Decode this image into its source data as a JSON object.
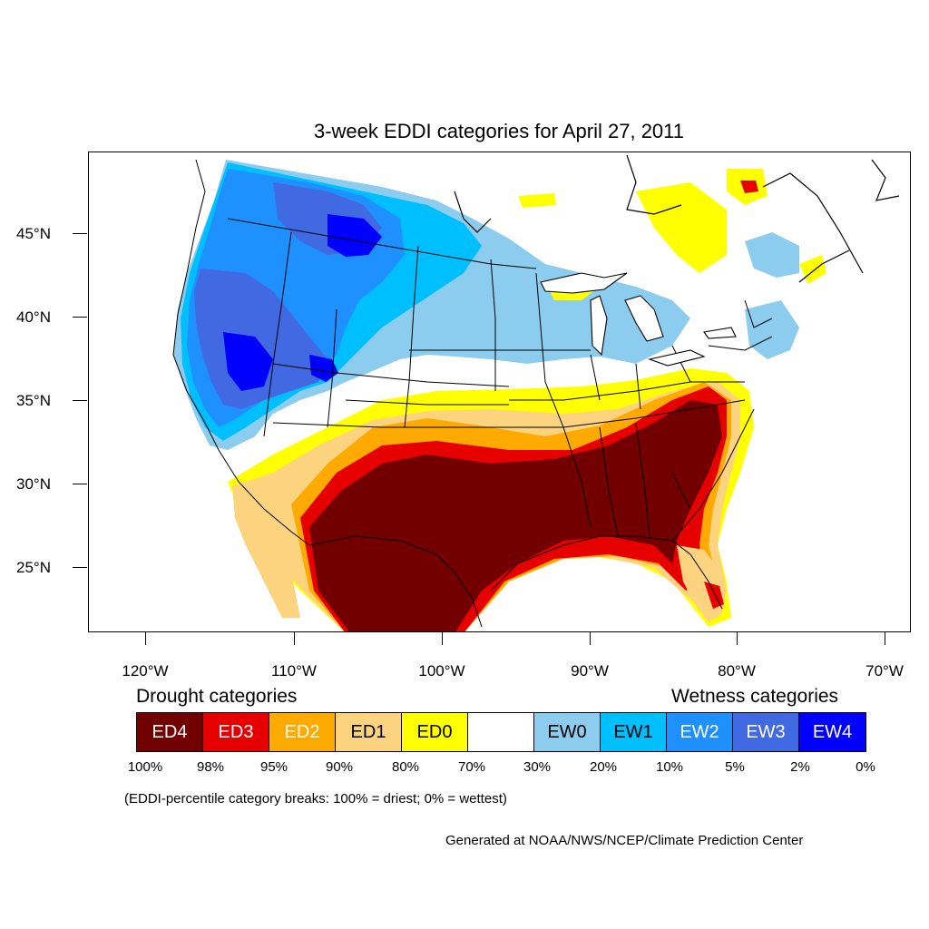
{
  "title": "3-week EDDI categories for April 27, 2011",
  "lat_labels": [
    "45°N",
    "40°N",
    "35°N",
    "30°N",
    "25°N"
  ],
  "lon_labels": [
    "120°W",
    "110°W",
    "100°W",
    "90°W",
    "80°W",
    "70°W"
  ],
  "legend": {
    "drought_heading": "Drought categories",
    "wetness_heading": "Wetness categories",
    "categories": [
      {
        "label": "ED4",
        "color": "#730000",
        "text_color": "#ffffff"
      },
      {
        "label": "ED3",
        "color": "#e60000",
        "text_color": "#ffffff"
      },
      {
        "label": "ED2",
        "color": "#ffaa00",
        "text_color": "#ffffff"
      },
      {
        "label": "ED1",
        "color": "#fcd37f",
        "text_color": "#000000"
      },
      {
        "label": "ED0",
        "color": "#ffff00",
        "text_color": "#000000"
      },
      {
        "label": "",
        "color": "#ffffff",
        "text_color": "#000000"
      },
      {
        "label": "EW0",
        "color": "#8ccdef",
        "text_color": "#000000"
      },
      {
        "label": "EW1",
        "color": "#00bfff",
        "text_color": "#000000"
      },
      {
        "label": "EW2",
        "color": "#1e90ff",
        "text_color": "#ffffff"
      },
      {
        "label": "EW3",
        "color": "#4169e1",
        "text_color": "#ffffff"
      },
      {
        "label": "EW4",
        "color": "#0000ff",
        "text_color": "#ffffff"
      }
    ],
    "percentile_breaks": [
      "100%",
      "98%",
      "95%",
      "90%",
      "80%",
      "70%",
      "30%",
      "20%",
      "10%",
      "5%",
      "2%",
      "0%"
    ]
  },
  "note": "(EDDI-percentile category breaks: 100% = driest; 0% = wettest)",
  "credit": "Generated at NOAA/NWS/NCEP/Climate Prediction Center"
}
